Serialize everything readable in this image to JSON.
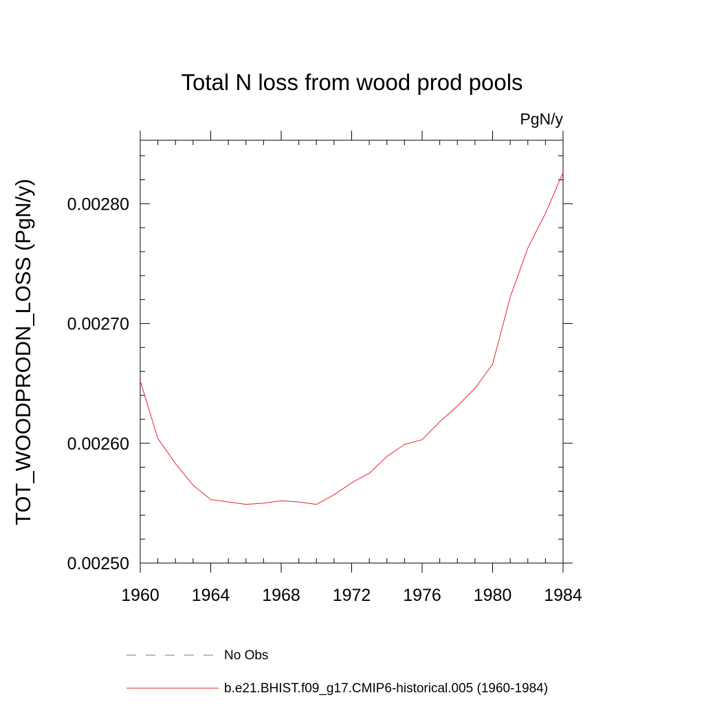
{
  "chart_data": {
    "type": "line",
    "title": "Total N loss from wood prod pools",
    "units_label": "PgN/y",
    "ylabel": "TOT_WOODPRODN_LOSS  (PgN/y)",
    "xlabel": "",
    "xlim": [
      1960,
      1984
    ],
    "ylim": [
      0.0025,
      0.002853
    ],
    "x_ticks": [
      1960,
      1964,
      1968,
      1972,
      1976,
      1980,
      1984
    ],
    "x_tick_labels": [
      "1960",
      "1964",
      "1968",
      "1972",
      "1976",
      "1980",
      "1984"
    ],
    "y_ticks": [
      0.0025,
      0.0026,
      0.0027,
      0.0028
    ],
    "y_tick_labels": [
      "0.00250",
      "0.00260",
      "0.00270",
      "0.00280"
    ],
    "grid": false,
    "legend_position": "bottom",
    "series": [
      {
        "name": "No Obs",
        "color": "#7b68b8",
        "dash": "dashed",
        "x": [],
        "values": []
      },
      {
        "name": "b.e21.BHIST.f09_g17.CMIP6-historical.005 (1960-1984)",
        "color": "#e8202a",
        "dash": "solid",
        "x": [
          1960,
          1961,
          1962,
          1963,
          1964,
          1965,
          1966,
          1967,
          1968,
          1969,
          1970,
          1971,
          1972,
          1973,
          1974,
          1975,
          1976,
          1977,
          1978,
          1979,
          1980,
          1981,
          1982,
          1983,
          1984
        ],
        "values": [
          0.002652,
          0.002604,
          0.002583,
          0.002565,
          0.002553,
          0.002551,
          0.002549,
          0.00255,
          0.002552,
          0.002551,
          0.002549,
          0.002557,
          0.002567,
          0.002575,
          0.002589,
          0.002599,
          0.002603,
          0.002618,
          0.002631,
          0.002646,
          0.002666,
          0.002722,
          0.002763,
          0.002792,
          0.002826
        ]
      }
    ]
  }
}
